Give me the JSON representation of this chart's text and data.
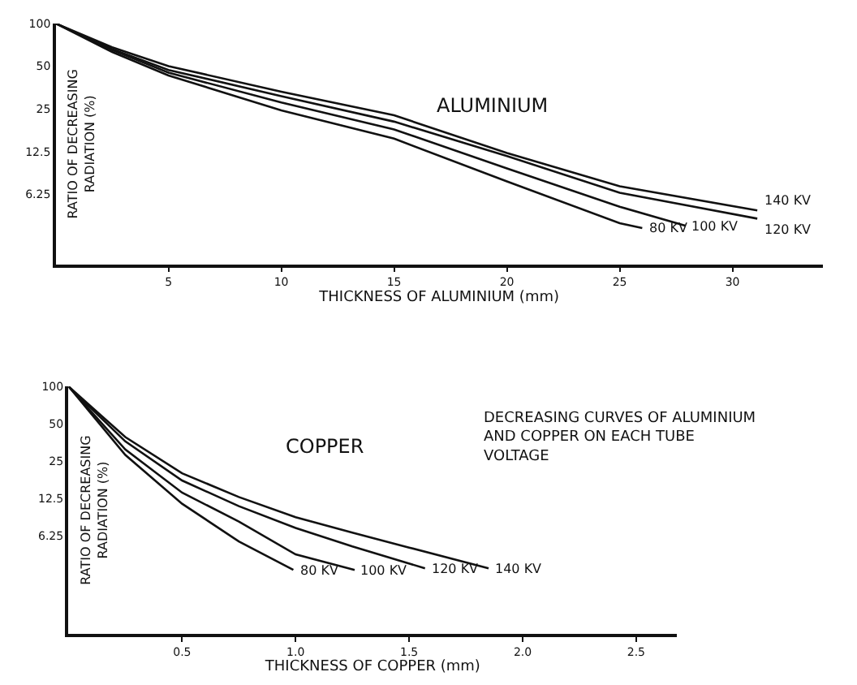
{
  "chart_data": [
    {
      "type": "line",
      "title": "ALUMINIUM",
      "xlabel": "THICKNESS OF ALUMINIUM (mm)",
      "ylabel": "RATIO OF DECREASING RADIATION (%)",
      "log": "y",
      "xlim": [
        0,
        34
      ],
      "xticks": [
        5,
        10,
        15,
        20,
        25,
        30
      ],
      "ylim": [
        2,
        100
      ],
      "yticks": [
        6.25,
        12.5,
        25,
        50,
        100
      ],
      "legend": false,
      "marker": "none",
      "line_style": "solid",
      "series": [
        {
          "name": "80 KV",
          "color": "#111111",
          "x": [
            0,
            2.5,
            5,
            10,
            15,
            20,
            25,
            26
          ],
          "values": [
            100,
            63,
            43,
            24.4,
            15.4,
            7.7,
            3.9,
            3.6
          ]
        },
        {
          "name": "100 KV",
          "color": "#111111",
          "x": [
            0,
            2.5,
            5,
            10,
            15,
            20,
            25,
            27.9
          ],
          "values": [
            100,
            65,
            45,
            27.7,
            17.9,
            9.5,
            5.1,
            3.75
          ]
        },
        {
          "name": "120 KV",
          "color": "#111111",
          "x": [
            0,
            2.5,
            5,
            10,
            15,
            20,
            25,
            31.1
          ],
          "values": [
            100,
            66,
            47,
            30.7,
            20.3,
            11.6,
            6.4,
            4.2
          ]
        },
        {
          "name": "140 KV",
          "color": "#111111",
          "x": [
            0,
            2.5,
            5,
            10,
            15,
            20,
            25,
            31.1
          ],
          "values": [
            100,
            68,
            50,
            33,
            22.5,
            12.2,
            7.1,
            4.8
          ]
        }
      ]
    },
    {
      "type": "line",
      "title": "COPPER",
      "xlabel": "THICKNESS OF COPPER (mm)",
      "ylabel": "RATIO OF DECREASING RADIATION (%)",
      "log": "y",
      "xlim": [
        0,
        2.68
      ],
      "xticks": [
        0.5,
        {
          "value": 1,
          "label": "1.0"
        },
        1.5,
        {
          "value": 2,
          "label": "2.0"
        },
        2.5
      ],
      "ylim": [
        1,
        100
      ],
      "yticks": [
        6.25,
        12.5,
        25,
        50,
        100
      ],
      "legend": false,
      "marker": "none",
      "line_style": "solid",
      "annotations": [
        "DECREASING CURVES OF ALUMINIUM AND COPPER ON EACH TUBE VOLTAGE"
      ],
      "series": [
        {
          "name": "80 KV",
          "color": "#111111",
          "x": [
            0,
            0.25,
            0.5,
            0.75,
            0.99
          ],
          "values": [
            100,
            28,
            11.3,
            5.6,
            3.3
          ]
        },
        {
          "name": "100 KV",
          "color": "#111111",
          "x": [
            0,
            0.25,
            0.5,
            0.75,
            1.0,
            1.26
          ],
          "values": [
            100,
            31,
            13.9,
            8.1,
            4.4,
            3.3
          ]
        },
        {
          "name": "120 KV",
          "color": "#111111",
          "x": [
            0,
            0.25,
            0.5,
            0.75,
            1.0,
            1.25,
            1.57
          ],
          "values": [
            100,
            36,
            17.4,
            10.8,
            7.2,
            5.1,
            3.4
          ]
        },
        {
          "name": "140 KV",
          "color": "#111111",
          "x": [
            0,
            0.25,
            0.5,
            0.75,
            1.0,
            1.25,
            1.5,
            1.85
          ],
          "values": [
            100,
            39,
            19.9,
            12.8,
            8.8,
            6.6,
            5.0,
            3.4
          ]
        }
      ]
    }
  ]
}
